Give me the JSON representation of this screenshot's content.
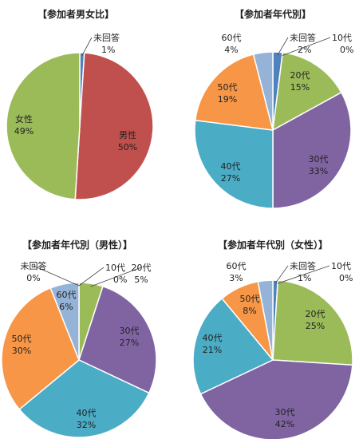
{
  "chart_data": [
    {
      "type": "pie",
      "title": "【参加者男女比】",
      "slices": [
        {
          "label": "未回答",
          "value": 1,
          "pct_label": "1%",
          "color": "#4f81bd"
        },
        {
          "label": "男性",
          "value": 50,
          "pct_label": "50%",
          "color": "#c0504d"
        },
        {
          "label": "女性",
          "value": 49,
          "pct_label": "49%",
          "color": "#9bbb59"
        }
      ]
    },
    {
      "type": "pie",
      "title": "【参加者年代別】",
      "slices": [
        {
          "label": "未回答",
          "value": 2,
          "pct_label": "2%",
          "color": "#4f81bd"
        },
        {
          "label": "10代",
          "value": 0,
          "pct_label": "0%",
          "color": "#c0504d"
        },
        {
          "label": "20代",
          "value": 15,
          "pct_label": "15%",
          "color": "#9bbb59"
        },
        {
          "label": "30代",
          "value": 33,
          "pct_label": "33%",
          "color": "#8064a2"
        },
        {
          "label": "40代",
          "value": 27,
          "pct_label": "27%",
          "color": "#4bacc6"
        },
        {
          "label": "50代",
          "value": 19,
          "pct_label": "19%",
          "color": "#f79646"
        },
        {
          "label": "60代",
          "value": 4,
          "pct_label": "4%",
          "color": "#95b3d7"
        }
      ]
    },
    {
      "type": "pie",
      "title": "【参加者年代別（男性）】",
      "slices": [
        {
          "label": "未回答",
          "value": 0,
          "pct_label": "0%",
          "color": "#4f81bd"
        },
        {
          "label": "10代",
          "value": 0,
          "pct_label": "0%",
          "color": "#c0504d"
        },
        {
          "label": "20代",
          "value": 5,
          "pct_label": "5%",
          "color": "#9bbb59"
        },
        {
          "label": "30代",
          "value": 27,
          "pct_label": "27%",
          "color": "#8064a2"
        },
        {
          "label": "40代",
          "value": 32,
          "pct_label": "32%",
          "color": "#4bacc6"
        },
        {
          "label": "50代",
          "value": 30,
          "pct_label": "30%",
          "color": "#f79646"
        },
        {
          "label": "60代",
          "value": 6,
          "pct_label": "6%",
          "color": "#95b3d7"
        }
      ]
    },
    {
      "type": "pie",
      "title": "【参加者年代別（女性）】",
      "slices": [
        {
          "label": "未回答",
          "value": 1,
          "pct_label": "1%",
          "color": "#4f81bd"
        },
        {
          "label": "10代",
          "value": 0,
          "pct_label": "0%",
          "color": "#c0504d"
        },
        {
          "label": "20代",
          "value": 25,
          "pct_label": "25%",
          "color": "#9bbb59"
        },
        {
          "label": "30代",
          "value": 42,
          "pct_label": "42%",
          "color": "#8064a2"
        },
        {
          "label": "40代",
          "value": 21,
          "pct_label": "21%",
          "color": "#4bacc6"
        },
        {
          "label": "50代",
          "value": 8,
          "pct_label": "8%",
          "color": "#f79646"
        },
        {
          "label": "60代",
          "value": 3,
          "pct_label": "3%",
          "color": "#95b3d7"
        }
      ]
    }
  ]
}
